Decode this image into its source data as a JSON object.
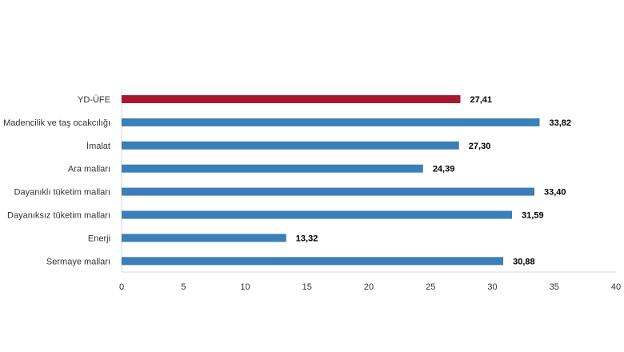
{
  "chart_data": {
    "type": "bar",
    "orientation": "horizontal",
    "categories": [
      "YD-ÜFE",
      "Madencilik ve taş ocakcılığı",
      "İmalat",
      "Ara malları",
      "Dayanıklı tüketim malları",
      "Dayanıksız tüketim malları",
      "Enerji",
      "Sermaye malları"
    ],
    "values": [
      27.41,
      33.82,
      27.3,
      24.39,
      33.4,
      31.59,
      13.32,
      30.88
    ],
    "value_labels": [
      "27,41",
      "33,82",
      "27,30",
      "24,39",
      "33,40",
      "31,59",
      "13,32",
      "30,88"
    ],
    "bar_colors": [
      "#a6192e",
      "#3a7fb7",
      "#3a7fb7",
      "#3a7fb7",
      "#3a7fb7",
      "#3a7fb7",
      "#3a7fb7",
      "#3a7fb7"
    ],
    "x_ticks": [
      "0",
      "5",
      "10",
      "15",
      "20",
      "25",
      "30",
      "35",
      "40"
    ],
    "xlim": [
      0,
      40
    ],
    "grid": false,
    "legend": "none"
  }
}
